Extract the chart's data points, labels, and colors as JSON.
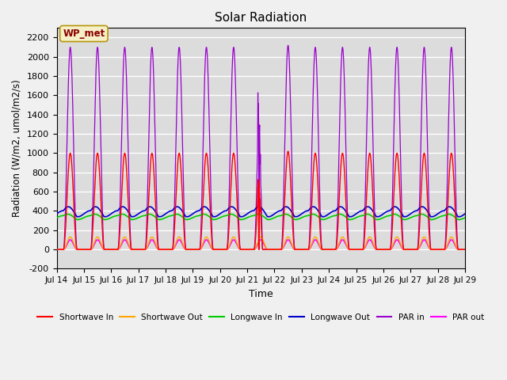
{
  "title": "Solar Radiation",
  "xlabel": "Time",
  "ylabel": "Radiation (W/m2, umol/m2/s)",
  "ylim": [
    -200,
    2300
  ],
  "yticks": [
    -200,
    0,
    200,
    400,
    600,
    800,
    1000,
    1200,
    1400,
    1600,
    1800,
    2000,
    2200
  ],
  "n_days": 15,
  "day_labels": [
    "Jul 14",
    "Jul 15",
    "Jul 16",
    "Jul 17",
    "Jul 18",
    "Jul 19",
    "Jul 20",
    "Jul 21",
    "Jul 22",
    "Jul 23",
    "Jul 24",
    "Jul 25",
    "Jul 26",
    "Jul 27",
    "Jul 28",
    "Jul 29"
  ],
  "series": {
    "shortwave_in": {
      "color": "#ff0000",
      "label": "Shortwave In",
      "lw": 1.0
    },
    "shortwave_out": {
      "color": "#ffa500",
      "label": "Shortwave Out",
      "lw": 1.0
    },
    "longwave_in": {
      "color": "#00cc00",
      "label": "Longwave In",
      "lw": 1.2
    },
    "longwave_out": {
      "color": "#0000cc",
      "label": "Longwave Out",
      "lw": 1.2
    },
    "par_in": {
      "color": "#9900cc",
      "label": "PAR in",
      "lw": 0.9
    },
    "par_out": {
      "color": "#ff00ff",
      "label": "PAR out",
      "lw": 1.2
    }
  },
  "annotation_text": "WP_met",
  "bg_color": "#dcdcdc",
  "fig_bg_color": "#f0f0f0",
  "grid_color": "#ffffff"
}
